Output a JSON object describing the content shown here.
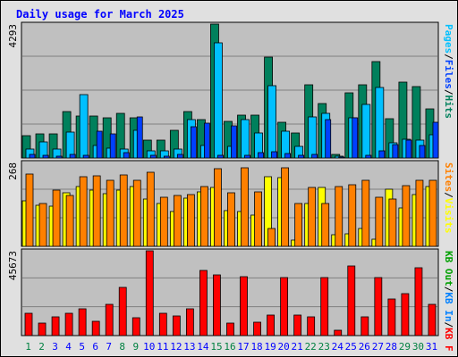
{
  "title": "Daily usage for March 2025",
  "colors": {
    "bg": "#e0e0e0",
    "panel": "#c0c0c0",
    "grid": "#808080",
    "title": "#0000ff",
    "hits": "#00805c",
    "files": "#00c0ff",
    "pages": "#0040ff",
    "visits": "#ffff00",
    "sites": "#ff8000",
    "kbin": "#00a000",
    "kbout": "#0080ff",
    "kbf": "#ff0000",
    "weekday_label": "#0000ff",
    "weekend_label": "#008040"
  },
  "chart_data": [
    {
      "type": "bar",
      "panel": "top",
      "ymax_label": "4293",
      "ylim": [
        0,
        4293
      ],
      "right_legend": [
        {
          "text": "Hits",
          "color": "#00805c"
        },
        {
          "text": "/",
          "color": "#000000"
        },
        {
          "text": "Files",
          "color": "#0040ff"
        },
        {
          "text": "/",
          "color": "#000000"
        },
        {
          "text": "Pages",
          "color": "#00c0ff"
        }
      ],
      "series": [
        {
          "name": "Hits",
          "values": [
            720,
            780,
            760,
            1480,
            1340,
            1340,
            1300,
            1440,
            1300,
            580,
            580,
            880,
            1480,
            1240,
            4293,
            1180,
            1380,
            1360,
            3220,
            1140,
            800,
            2340,
            1760,
            120,
            2080,
            2340,
            3080,
            1260,
            2420,
            2280,
            1560
          ]
        },
        {
          "name": "Files",
          "values": [
            280,
            520,
            280,
            840,
            2020,
            400,
            320,
            280,
            880,
            220,
            240,
            300,
            1220,
            400,
            3680,
            360,
            1240,
            800,
            2320,
            860,
            360,
            1320,
            1420,
            60,
            1280,
            1720,
            2260,
            480,
            600,
            560,
            740
          ]
        },
        {
          "name": "Pages",
          "values": [
            120,
            100,
            60,
            120,
            80,
            860,
            760,
            160,
            1320,
            80,
            60,
            120,
            1000,
            1120,
            80,
            1020,
            80,
            160,
            200,
            140,
            80,
            120,
            1240,
            40,
            1280,
            80,
            220,
            420,
            560,
            400,
            1140
          ]
        }
      ]
    },
    {
      "type": "bar",
      "panel": "middle",
      "ymax_label": "268",
      "ylim": [
        0,
        268
      ],
      "right_legend": [
        {
          "text": "Visits",
          "color": "#ffff00"
        },
        {
          "text": "/",
          "color": "#000000"
        },
        {
          "text": "Sites",
          "color": "#ff8000"
        }
      ],
      "series": [
        {
          "name": "Visits",
          "values": [
            145,
            130,
            128,
            172,
            190,
            180,
            168,
            180,
            192,
            152,
            136,
            110,
            154,
            174,
            188,
            114,
            112,
            100,
            222,
            220,
            20,
            136,
            188,
            38,
            40,
            58,
            24,
            182,
            122,
            164,
            190
          ]
        },
        {
          "name": "Sites",
          "values": [
            230,
            136,
            180,
            162,
            222,
            226,
            210,
            228,
            210,
            238,
            156,
            162,
            166,
            190,
            248,
            172,
            250,
            174,
            58,
            252,
            136,
            188,
            138,
            190,
            198,
            210,
            156,
            150,
            194,
            210,
            212
          ]
        }
      ]
    },
    {
      "type": "bar",
      "panel": "bottom",
      "ymax_label": "45673",
      "ylim": [
        0,
        45673
      ],
      "right_legend": [
        {
          "text": "KB F",
          "color": "#ff0000"
        },
        {
          "text": "/",
          "color": "#000000"
        },
        {
          "text": "KB In",
          "color": "#0080ff"
        },
        {
          "text": "/",
          "color": "#000000"
        },
        {
          "text": "KB Out",
          "color": "#00a000"
        }
      ],
      "series": [
        {
          "name": "KB F",
          "values": [
            11800,
            6800,
            10000,
            12000,
            14500,
            7500,
            17000,
            26000,
            9500,
            45673,
            12200,
            10800,
            14300,
            35000,
            32600,
            6800,
            31800,
            7000,
            11000,
            31400,
            11200,
            10200,
            31400,
            3100,
            37400,
            10300,
            31200,
            19800,
            22400,
            36600,
            17000
          ]
        }
      ]
    }
  ],
  "x_labels": [
    "1",
    "2",
    "3",
    "4",
    "5",
    "6",
    "7",
    "8",
    "9",
    "10",
    "11",
    "12",
    "13",
    "14",
    "15",
    "16",
    "17",
    "18",
    "19",
    "20",
    "21",
    "22",
    "23",
    "24",
    "25",
    "26",
    "27",
    "28",
    "29",
    "30",
    "31"
  ],
  "weekend_days": [
    "1",
    "2",
    "8",
    "9",
    "15",
    "16",
    "22",
    "23",
    "29",
    "30"
  ]
}
